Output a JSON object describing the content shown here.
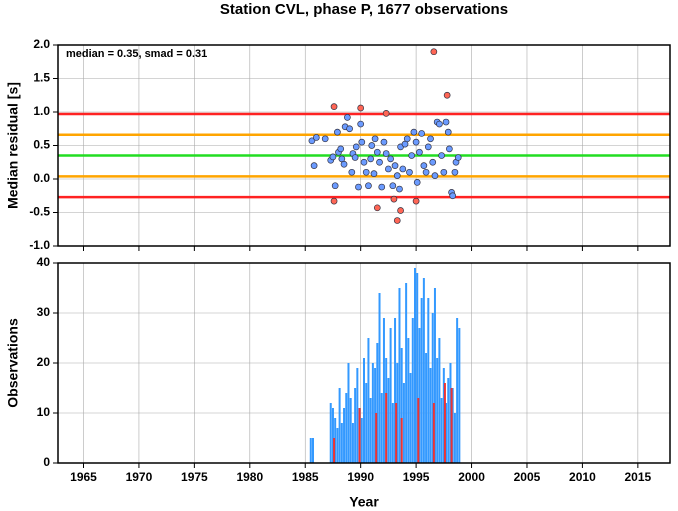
{
  "chart_data": [
    {
      "type": "scatter",
      "title": "Station CVL, phase P, 1677 observations",
      "ylabel": "Median residual [s]",
      "annotation": "median = 0.35, smad = 0.31",
      "xlim": [
        1962.7,
        2017.9
      ],
      "xticks": [
        1965,
        1970,
        1975,
        1980,
        1985,
        1990,
        1995,
        2000,
        2005,
        2010,
        2015
      ],
      "ylim": [
        -1,
        2
      ],
      "yticks": [
        {
          "value": -1,
          "label": "-1.0"
        },
        -0.5,
        {
          "value": 0,
          "label": "0.0"
        },
        0.5,
        {
          "value": 1,
          "label": "1.0"
        },
        1.5,
        {
          "value": 2,
          "label": "2.0"
        }
      ],
      "grid": true,
      "hlines": [
        {
          "value": 0.97,
          "color": "#ff2222"
        },
        {
          "value": 0.66,
          "color": "#ffa500"
        },
        {
          "value": 0.35,
          "color": "#22dd22"
        },
        {
          "value": 0.04,
          "color": "#ffa500"
        },
        {
          "value": -0.27,
          "color": "#ff2222"
        }
      ],
      "series": [
        {
          "color": "#6b9bff",
          "x": [
            1985.6,
            1985.8,
            1986.0,
            1986.8,
            1987.3,
            1987.5,
            1987.7,
            1987.9,
            1988.0,
            1988.2,
            1988.3,
            1988.5,
            1988.6,
            1988.8,
            1989.0,
            1989.2,
            1989.3,
            1989.5,
            1989.6,
            1989.8,
            1990.0,
            1990.1,
            1990.3,
            1990.5,
            1990.7,
            1990.9,
            1991.0,
            1991.2,
            1991.3,
            1991.5,
            1991.7,
            1991.9,
            1992.1,
            1992.3,
            1992.5,
            1992.7,
            1992.9,
            1993.1,
            1993.3,
            1993.5,
            1993.6,
            1993.8,
            1994.0,
            1994.2,
            1994.4,
            1994.6,
            1994.8,
            1995.0,
            1995.1,
            1995.3,
            1995.5,
            1995.7,
            1995.9,
            1996.1,
            1996.3,
            1996.5,
            1996.7,
            1996.9,
            1997.1,
            1997.3,
            1997.5,
            1997.7,
            1997.9,
            1998.0,
            1998.2,
            1998.3,
            1998.5,
            1998.6,
            1998.8
          ],
          "values": [
            0.57,
            0.2,
            0.62,
            0.6,
            0.28,
            0.33,
            -0.1,
            0.7,
            0.4,
            0.45,
            0.3,
            0.22,
            0.78,
            0.92,
            0.75,
            0.1,
            0.38,
            0.32,
            0.48,
            -0.12,
            0.82,
            0.55,
            0.25,
            0.1,
            -0.1,
            0.3,
            0.5,
            0.08,
            0.6,
            0.4,
            0.25,
            -0.12,
            0.55,
            0.38,
            0.15,
            0.3,
            -0.1,
            0.2,
            0.05,
            -0.15,
            0.48,
            0.15,
            0.52,
            0.6,
            0.1,
            0.35,
            0.7,
            0.55,
            -0.05,
            0.4,
            0.68,
            0.2,
            0.1,
            0.48,
            0.6,
            0.25,
            0.05,
            0.85,
            0.82,
            0.35,
            0.1,
            0.85,
            0.7,
            0.45,
            -0.2,
            -0.25,
            0.1,
            0.25,
            0.32
          ]
        },
        {
          "color": "#ff6655",
          "x": [
            1987.6,
            1987.6,
            1990.0,
            1991.5,
            1992.3,
            1993.0,
            1993.3,
            1993.6,
            1995.0,
            1996.6,
            1997.8
          ],
          "values": [
            1.08,
            -0.33,
            1.06,
            -0.43,
            0.98,
            -0.3,
            -0.62,
            -0.47,
            -0.33,
            1.9,
            1.25
          ]
        }
      ]
    },
    {
      "type": "bar",
      "ylabel": "Observations",
      "xlabel": "Year",
      "xlim": [
        1962.7,
        2017.9
      ],
      "xticks": [
        1965,
        1970,
        1975,
        1980,
        1985,
        1990,
        1995,
        2000,
        2005,
        2010,
        2015
      ],
      "ylim": [
        0,
        40
      ],
      "yticks": [
        0,
        10,
        20,
        30,
        40
      ],
      "grid": true,
      "series": [
        {
          "color": "#3399ff",
          "x": [
            1985.5,
            1985.7,
            1987.3,
            1987.5,
            1987.7,
            1987.9,
            1988.1,
            1988.3,
            1988.5,
            1988.7,
            1988.9,
            1989.1,
            1989.3,
            1989.5,
            1989.7,
            1989.9,
            1990.1,
            1990.3,
            1990.5,
            1990.7,
            1990.9,
            1991.1,
            1991.3,
            1991.5,
            1991.7,
            1991.9,
            1992.1,
            1992.3,
            1992.5,
            1992.7,
            1992.9,
            1993.1,
            1993.3,
            1993.5,
            1993.7,
            1993.9,
            1994.1,
            1994.3,
            1994.5,
            1994.7,
            1994.9,
            1995.1,
            1995.3,
            1995.5,
            1995.7,
            1995.9,
            1996.1,
            1996.3,
            1996.5,
            1996.7,
            1996.9,
            1997.1,
            1997.3,
            1997.5,
            1997.7,
            1997.9,
            1998.1,
            1998.3,
            1998.5,
            1998.7,
            1998.9
          ],
          "values": [
            5,
            5,
            12,
            11,
            9,
            7,
            15,
            8,
            11,
            14,
            20,
            13,
            8,
            15,
            19,
            11,
            9,
            21,
            16,
            25,
            13,
            20,
            19,
            24,
            34,
            14,
            29,
            21,
            17,
            27,
            12,
            29,
            20,
            35,
            23,
            16,
            36,
            25,
            18,
            29,
            39,
            38,
            27,
            33,
            37,
            22,
            33,
            19,
            30,
            35,
            21,
            25,
            13,
            19,
            12,
            17,
            20,
            15,
            10,
            29,
            27
          ]
        },
        {
          "color": "#ee3333",
          "x": [
            1987.6,
            1989.9,
            1991.4,
            1992.3,
            1993.2,
            1993.7,
            1995.2,
            1996.6,
            1997.6,
            1998.2
          ],
          "values": [
            5,
            11,
            10,
            14,
            12,
            9,
            13,
            12,
            16,
            15
          ]
        }
      ]
    }
  ]
}
